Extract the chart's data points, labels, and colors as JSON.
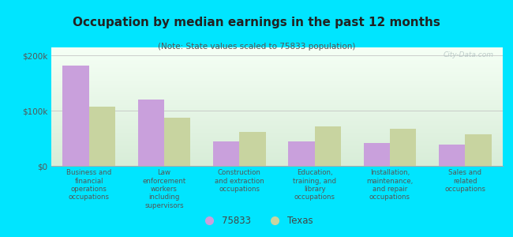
{
  "title": "Occupation by median earnings in the past 12 months",
  "subtitle": "(Note: State values scaled to 75833 population)",
  "categories": [
    "Business and\nfinancial\noperations\noccupations",
    "Law\nenforcement\nworkers\nincluding\nsupervisors",
    "Construction\nand extraction\noccupations",
    "Education,\ntraining, and\nlibrary\noccupations",
    "Installation,\nmaintenance,\nand repair\noccupations",
    "Sales and\nrelated\noccupations"
  ],
  "values_75833": [
    182000,
    120000,
    45000,
    44000,
    42000,
    38000
  ],
  "values_texas": [
    108000,
    88000,
    62000,
    72000,
    68000,
    58000
  ],
  "color_75833": "#c9a0dc",
  "color_texas": "#c8d4a0",
  "background_color": "#00e5ff",
  "plot_bg_top": "#f5fff5",
  "plot_bg_bottom": "#d8edd8",
  "yticks": [
    0,
    100000,
    200000
  ],
  "ytick_labels": [
    "$0",
    "$100k",
    "$200k"
  ],
  "ylim": [
    0,
    215000
  ],
  "legend_75833": "75833",
  "legend_texas": "Texas",
  "watermark": "City-Data.com"
}
